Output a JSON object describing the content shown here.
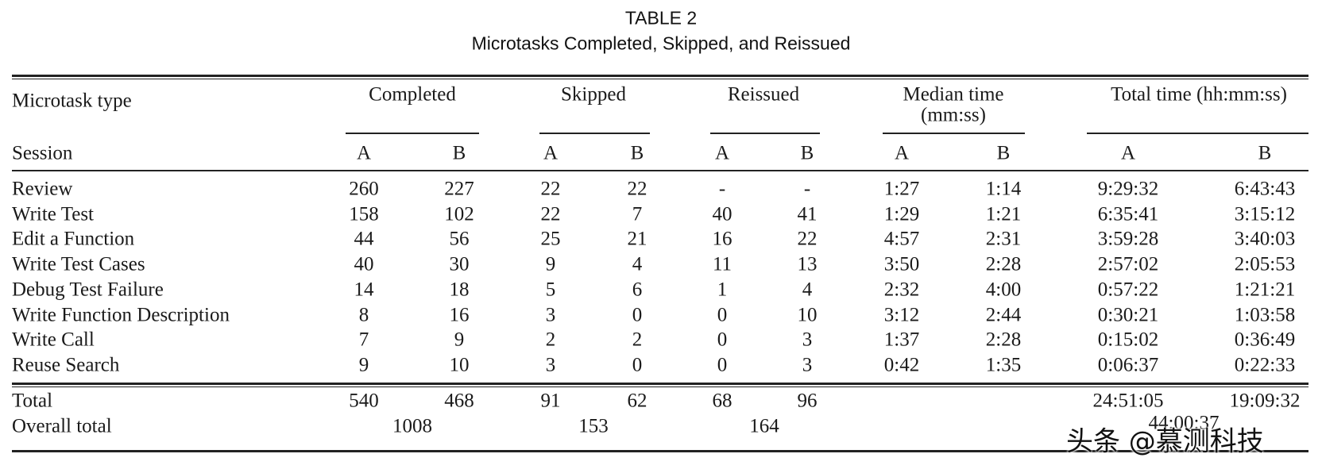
{
  "header": {
    "label": "TABLE 2",
    "title": "Microtasks Completed, Skipped, and Reissued"
  },
  "table": {
    "row_header": "Microtask type",
    "session_label": "Session",
    "sessions": [
      "A",
      "B"
    ],
    "groups": [
      {
        "label": "Completed"
      },
      {
        "label": "Skipped"
      },
      {
        "label": "Reissued"
      },
      {
        "label": "Median time",
        "sublabel": "(mm:ss)"
      },
      {
        "label": "Total time (hh:mm:ss)"
      }
    ],
    "rows": [
      {
        "type": "Review",
        "completed": [
          260,
          227
        ],
        "skipped": [
          22,
          22
        ],
        "reissued": [
          "-",
          "-"
        ],
        "median": [
          "1:27",
          "1:14"
        ],
        "total": [
          "9:29:32",
          "6:43:43"
        ]
      },
      {
        "type": "Write Test",
        "completed": [
          158,
          102
        ],
        "skipped": [
          22,
          7
        ],
        "reissued": [
          40,
          41
        ],
        "median": [
          "1:29",
          "1:21"
        ],
        "total": [
          "6:35:41",
          "3:15:12"
        ]
      },
      {
        "type": "Edit a Function",
        "completed": [
          44,
          56
        ],
        "skipped": [
          25,
          21
        ],
        "reissued": [
          16,
          22
        ],
        "median": [
          "4:57",
          "2:31"
        ],
        "total": [
          "3:59:28",
          "3:40:03"
        ]
      },
      {
        "type": "Write Test Cases",
        "completed": [
          40,
          30
        ],
        "skipped": [
          9,
          4
        ],
        "reissued": [
          11,
          13
        ],
        "median": [
          "3:50",
          "2:28"
        ],
        "total": [
          "2:57:02",
          "2:05:53"
        ]
      },
      {
        "type": "Debug Test Failure",
        "completed": [
          14,
          18
        ],
        "skipped": [
          5,
          6
        ],
        "reissued": [
          1,
          4
        ],
        "median": [
          "2:32",
          "4:00"
        ],
        "total": [
          "0:57:22",
          "1:21:21"
        ]
      },
      {
        "type": "Write Function Description",
        "completed": [
          8,
          16
        ],
        "skipped": [
          3,
          0
        ],
        "reissued": [
          0,
          10
        ],
        "median": [
          "3:12",
          "2:44"
        ],
        "total": [
          "0:30:21",
          "1:03:58"
        ]
      },
      {
        "type": "Write Call",
        "completed": [
          7,
          9
        ],
        "skipped": [
          2,
          2
        ],
        "reissued": [
          0,
          3
        ],
        "median": [
          "1:37",
          "2:28"
        ],
        "total": [
          "0:15:02",
          "0:36:49"
        ]
      },
      {
        "type": "Reuse Search",
        "completed": [
          9,
          10
        ],
        "skipped": [
          3,
          0
        ],
        "reissued": [
          0,
          3
        ],
        "median": [
          "0:42",
          "1:35"
        ],
        "total": [
          "0:06:37",
          "0:22:33"
        ]
      }
    ],
    "total": {
      "label": "Total",
      "completed": [
        540,
        468
      ],
      "skipped": [
        91,
        62
      ],
      "reissued": [
        68,
        96
      ],
      "total": [
        "24:51:05",
        "19:09:32"
      ]
    },
    "overall": {
      "label": "Overall total",
      "completed": 1008,
      "skipped": 153,
      "reissued": 164,
      "total": "44:00:37"
    }
  },
  "watermark": "头条 @慕测科技"
}
